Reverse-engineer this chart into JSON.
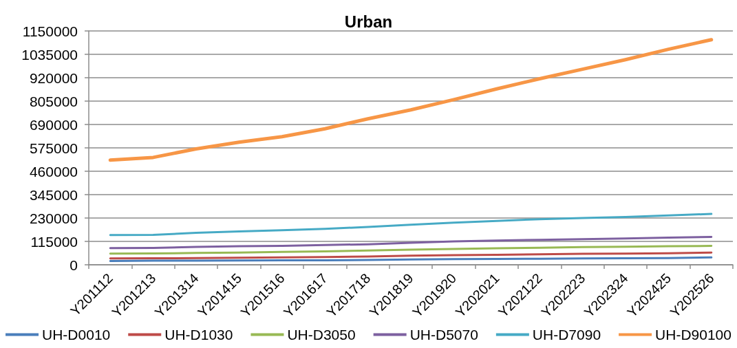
{
  "chart_data": {
    "type": "line",
    "title": "Urban",
    "categories": [
      "Y201112",
      "Y201213",
      "Y201314",
      "Y201415",
      "Y201516",
      "Y201617",
      "Y201718",
      "Y201819",
      "Y201920",
      "Y202021",
      "Y202122",
      "Y202223",
      "Y202324",
      "Y202425",
      "Y202526"
    ],
    "series": [
      {
        "name": "UH-D0010",
        "color": "#4a7ebb",
        "values": [
          19000,
          20000,
          20000,
          21000,
          22000,
          22000,
          24000,
          26000,
          28000,
          29000,
          30000,
          31000,
          32000,
          33000,
          36000
        ]
      },
      {
        "name": "UH-D1030",
        "color": "#be4b48",
        "values": [
          31000,
          32000,
          33000,
          35000,
          36000,
          38000,
          41000,
          45000,
          47000,
          49000,
          52000,
          54000,
          55000,
          57000,
          60000
        ]
      },
      {
        "name": "UH-D3050",
        "color": "#98b954",
        "values": [
          55000,
          56000,
          58000,
          60000,
          63000,
          66000,
          70000,
          74000,
          78000,
          81000,
          84000,
          87000,
          89000,
          91000,
          93000
        ]
      },
      {
        "name": "UH-D5070",
        "color": "#7d60a0",
        "values": [
          82000,
          83000,
          88000,
          91000,
          93000,
          97000,
          101000,
          108000,
          115000,
          119000,
          123000,
          126000,
          129000,
          134000,
          137000
        ]
      },
      {
        "name": "UH-D7090",
        "color": "#46aac5",
        "values": [
          146000,
          147000,
          157000,
          164000,
          170000,
          177000,
          186000,
          197000,
          207000,
          216000,
          224000,
          230000,
          235000,
          243000,
          250000
        ]
      },
      {
        "name": "UH-D90100",
        "color": "#f79646",
        "values": [
          515000,
          528000,
          570000,
          603000,
          630000,
          669000,
          718000,
          762000,
          812000,
          865000,
          915000,
          962000,
          1009000,
          1060000,
          1107000
        ]
      }
    ],
    "ylim": [
      0,
      1150000
    ],
    "yticks": [
      0,
      115000,
      230000,
      345000,
      460000,
      575000,
      690000,
      805000,
      920000,
      1035000,
      1150000
    ],
    "grid": "y",
    "legend": "bottom"
  }
}
